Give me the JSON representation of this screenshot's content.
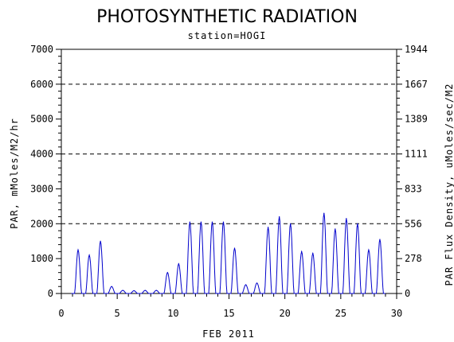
{
  "chart_data": {
    "type": "line",
    "title": "PHOTOSYNTHETIC RADIATION",
    "subtitle": "station=HOGI",
    "xlabel": "FEB 2011",
    "ylabel": "PAR, mMoles/M2/hr",
    "y2label": "PAR Flux Density, uMoles/sec/M2",
    "xlim": [
      0,
      30
    ],
    "ylim": [
      0,
      7000
    ],
    "x_ticks": [
      0,
      5,
      10,
      15,
      20,
      25,
      30
    ],
    "y_ticks": [
      0,
      1000,
      2000,
      3000,
      4000,
      5000,
      6000,
      7000
    ],
    "y2_ticks": [
      {
        "value": 0,
        "label": "0"
      },
      {
        "value": 1000,
        "label": "278"
      },
      {
        "value": 2000,
        "label": "556"
      },
      {
        "value": 3000,
        "label": "833"
      },
      {
        "value": 4000,
        "label": "1111"
      },
      {
        "value": 5000,
        "label": "1389"
      },
      {
        "value": 6000,
        "label": "1667"
      },
      {
        "value": 7000,
        "label": "1944"
      }
    ],
    "dashed_gridlines": [
      2000,
      4000,
      6000
    ],
    "line_color": "#0000cc",
    "daily_peaks": [
      {
        "day": 1,
        "peak": 1250
      },
      {
        "day": 2,
        "peak": 1100
      },
      {
        "day": 3,
        "peak": 1500
      },
      {
        "day": 4,
        "peak": 200
      },
      {
        "day": 5,
        "peak": 90
      },
      {
        "day": 6,
        "peak": 80
      },
      {
        "day": 7,
        "peak": 90
      },
      {
        "day": 8,
        "peak": 90
      },
      {
        "day": 9,
        "peak": 600
      },
      {
        "day": 10,
        "peak": 850
      },
      {
        "day": 11,
        "peak": 2050
      },
      {
        "day": 12,
        "peak": 2050
      },
      {
        "day": 13,
        "peak": 2050
      },
      {
        "day": 14,
        "peak": 2050
      },
      {
        "day": 15,
        "peak": 1300
      },
      {
        "day": 16,
        "peak": 250
      },
      {
        "day": 17,
        "peak": 300
      },
      {
        "day": 18,
        "peak": 1900
      },
      {
        "day": 19,
        "peak": 2200
      },
      {
        "day": 20,
        "peak": 2000
      },
      {
        "day": 21,
        "peak": 1200
      },
      {
        "day": 22,
        "peak": 1150
      },
      {
        "day": 23,
        "peak": 2300
      },
      {
        "day": 24,
        "peak": 1850
      },
      {
        "day": 25,
        "peak": 2150
      },
      {
        "day": 26,
        "peak": 2000
      },
      {
        "day": 27,
        "peak": 1250
      },
      {
        "day": 28,
        "peak": 1550
      }
    ]
  }
}
